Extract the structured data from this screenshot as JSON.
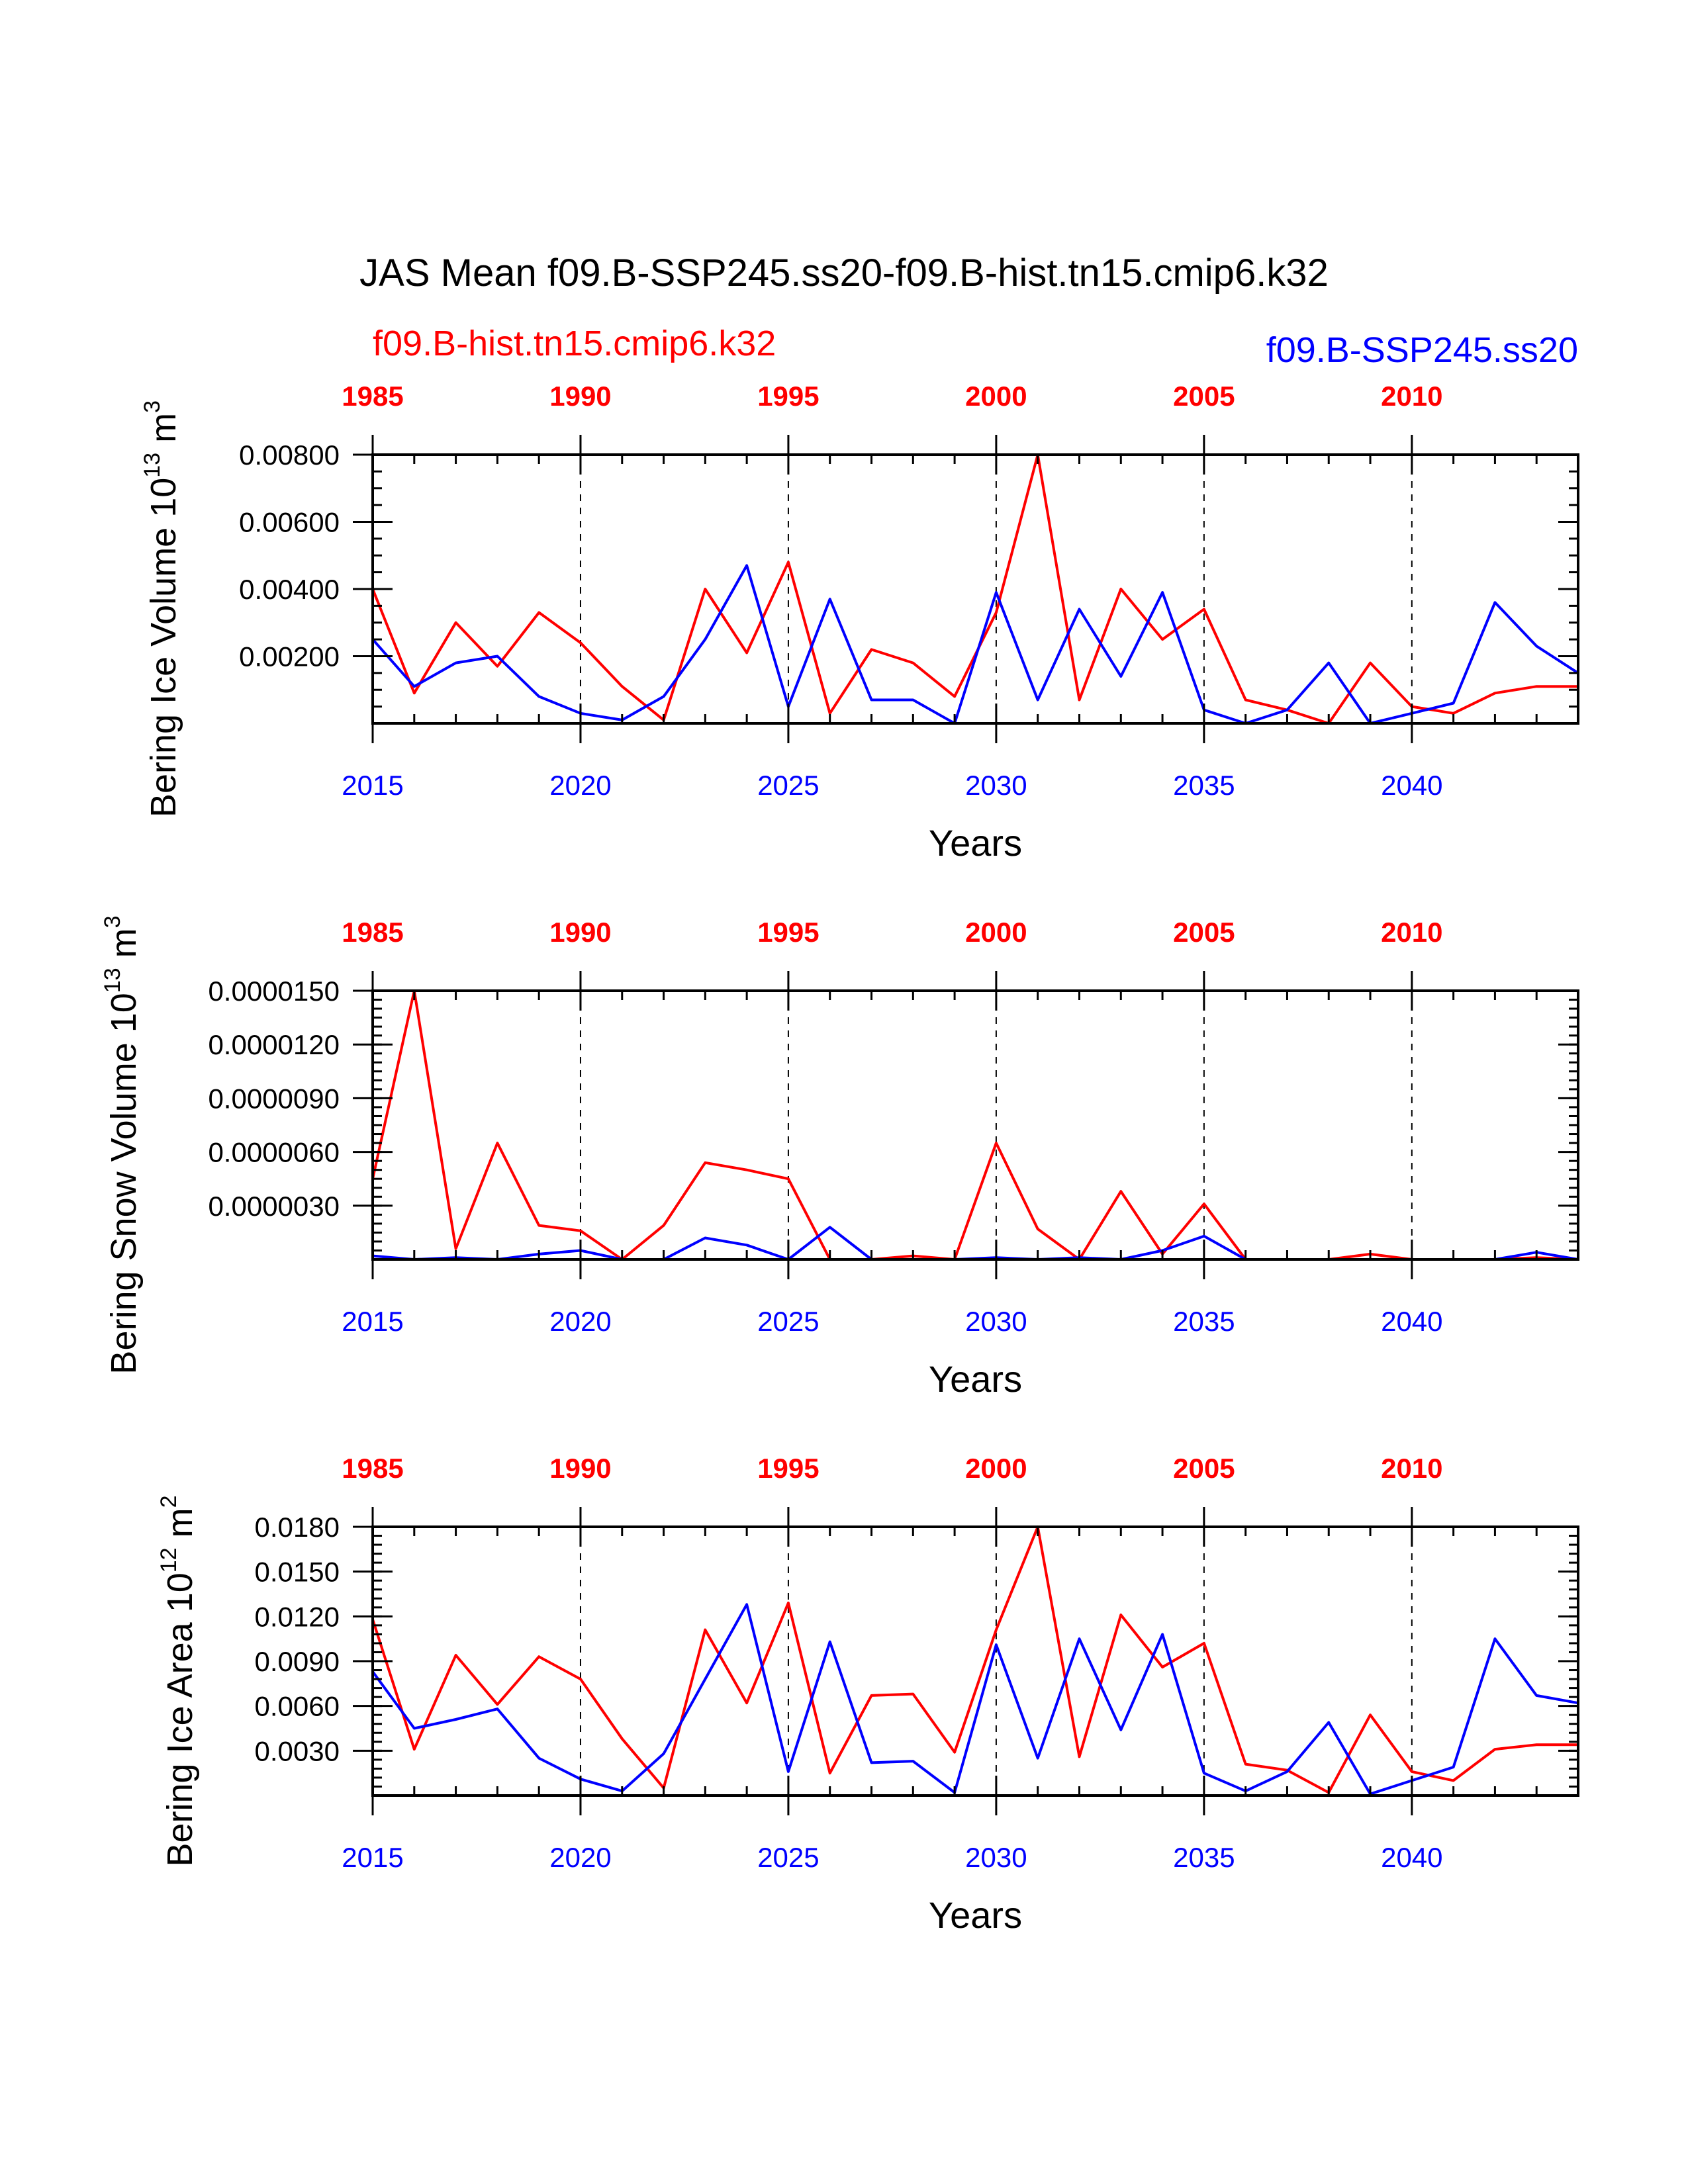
{
  "title": "JAS Mean f09.B-SSP245.ss20-f09.B-hist.tn15.cmip6.k32",
  "colors": {
    "hist": "#ff0000",
    "ssp": "#0000ff",
    "axis": "#000000"
  },
  "legend": {
    "hist_label": "f09.B-hist.tn15.cmip6.k32",
    "ssp_label": "f09.B-SSP245.ss20"
  },
  "chart_data": [
    {
      "type": "line",
      "ylabel": "Bering Ice Volume 10",
      "ylabel_exp": "13",
      "ylabel_unit": " m",
      "ylabel_unit_exp": "3",
      "xlabel": "Years",
      "ylim": [
        0,
        0.008
      ],
      "yticks": [
        0.002,
        0.004,
        0.006,
        0.008
      ],
      "ytick_labels": [
        "0.00200",
        "0.00400",
        "0.00600",
        "0.00800"
      ],
      "yminor": 0.0005,
      "bottom_x": [
        2015,
        2016,
        2017,
        2018,
        2019,
        2020,
        2021,
        2022,
        2023,
        2024,
        2025,
        2026,
        2027,
        2028,
        2029,
        2030,
        2031,
        2032,
        2033,
        2034,
        2035,
        2036,
        2037,
        2038,
        2039,
        2040,
        2041,
        2042,
        2043,
        2044
      ],
      "xlim": [
        2015,
        2044
      ],
      "bottom_ticks": [
        "2015",
        "2020",
        "2025",
        "2030",
        "2035",
        "2040"
      ],
      "top_ticks": [
        "1985",
        "1990",
        "1995",
        "2000",
        "2005",
        "2010"
      ],
      "series": [
        {
          "name": "f09.B-hist.tn15.cmip6.k32",
          "values": [
            0.004,
            0.0009,
            0.003,
            0.0017,
            0.0033,
            0.0024,
            0.0011,
            0.0001,
            0.004,
            0.0021,
            0.0048,
            0.0003,
            0.0022,
            0.0018,
            0.0008,
            0.0033,
            0.008,
            0.0007,
            0.004,
            0.0025,
            0.0034,
            0.0007,
            0.0004,
            0.0,
            0.0018,
            0.0005,
            0.0003,
            0.0009,
            0.0011,
            0.0011
          ]
        },
        {
          "name": "f09.B-SSP245.ss20",
          "values": [
            0.0025,
            0.0011,
            0.0018,
            0.002,
            0.0008,
            0.0003,
            0.0001,
            0.0008,
            0.0025,
            0.0047,
            0.0005,
            0.0037,
            0.0007,
            0.0007,
            0.0,
            0.0039,
            0.0007,
            0.0034,
            0.0014,
            0.0039,
            0.0004,
            0.0,
            0.0004,
            0.0018,
            0.0,
            0.0003,
            0.0006,
            0.0036,
            0.0023,
            0.0015
          ]
        }
      ]
    },
    {
      "type": "line",
      "ylabel": "Bering Snow Volume 10",
      "ylabel_exp": "13",
      "ylabel_unit": " m",
      "ylabel_unit_exp": "3",
      "xlabel": "Years",
      "ylim": [
        0,
        1.5e-05
      ],
      "yticks": [
        3e-06,
        6e-06,
        9e-06,
        1.2e-05,
        1.5e-05
      ],
      "ytick_labels": [
        "0.0000030",
        "0.0000060",
        "0.0000090",
        "0.0000120",
        "0.0000150"
      ],
      "yminor": 5e-07,
      "bottom_x": [
        2015,
        2016,
        2017,
        2018,
        2019,
        2020,
        2021,
        2022,
        2023,
        2024,
        2025,
        2026,
        2027,
        2028,
        2029,
        2030,
        2031,
        2032,
        2033,
        2034,
        2035,
        2036,
        2037,
        2038,
        2039,
        2040,
        2041,
        2042,
        2043,
        2044
      ],
      "xlim": [
        2015,
        2044
      ],
      "bottom_ticks": [
        "2015",
        "2020",
        "2025",
        "2030",
        "2035",
        "2040"
      ],
      "top_ticks": [
        "1985",
        "1990",
        "1995",
        "2000",
        "2005",
        "2010"
      ],
      "series": [
        {
          "name": "f09.B-hist.tn15.cmip6.k32",
          "values": [
            4.5e-06,
            1.5e-05,
            6e-07,
            6.5e-06,
            1.9e-06,
            1.6e-06,
            0.0,
            1.9e-06,
            5.4e-06,
            5e-06,
            4.5e-06,
            0.0,
            0.0,
            2e-07,
            0.0,
            6.5e-06,
            1.7e-06,
            0.0,
            3.8e-06,
            3e-07,
            3.1e-06,
            0.0,
            0.0,
            0.0,
            3e-07,
            0.0,
            0.0,
            0.0,
            1e-07,
            0.0
          ]
        },
        {
          "name": "f09.B-SSP245.ss20",
          "values": [
            2e-07,
            0.0,
            1e-07,
            0.0,
            3e-07,
            5e-07,
            0.0,
            0.0,
            1.2e-06,
            8e-07,
            0.0,
            1.8e-06,
            0.0,
            0.0,
            0.0,
            1e-07,
            0.0,
            1e-07,
            0.0,
            5e-07,
            1.3e-06,
            0.0,
            0.0,
            0.0,
            0.0,
            0.0,
            0.0,
            0.0,
            4e-07,
            0.0
          ]
        }
      ]
    },
    {
      "type": "line",
      "ylabel": "Bering Ice Area 10",
      "ylabel_exp": "12",
      "ylabel_unit": " m",
      "ylabel_unit_exp": "2",
      "xlabel": "Years",
      "ylim": [
        0,
        0.018
      ],
      "yticks": [
        0.003,
        0.006,
        0.009,
        0.012,
        0.015,
        0.018
      ],
      "ytick_labels": [
        "0.0030",
        "0.0060",
        "0.0090",
        "0.0120",
        "0.0150",
        "0.0180"
      ],
      "yminor": 0.0006,
      "bottom_x": [
        2015,
        2016,
        2017,
        2018,
        2019,
        2020,
        2021,
        2022,
        2023,
        2024,
        2025,
        2026,
        2027,
        2028,
        2029,
        2030,
        2031,
        2032,
        2033,
        2034,
        2035,
        2036,
        2037,
        2038,
        2039,
        2040,
        2041,
        2042,
        2043,
        2044
      ],
      "xlim": [
        2015,
        2044
      ],
      "bottom_ticks": [
        "2015",
        "2020",
        "2025",
        "2030",
        "2035",
        "2040"
      ],
      "top_ticks": [
        "1985",
        "1990",
        "1995",
        "2000",
        "2005",
        "2010"
      ],
      "series": [
        {
          "name": "f09.B-hist.tn15.cmip6.k32",
          "values": [
            0.0118,
            0.0031,
            0.0094,
            0.0061,
            0.0093,
            0.0078,
            0.0038,
            0.0005,
            0.0111,
            0.0062,
            0.0129,
            0.0015,
            0.0067,
            0.0068,
            0.0029,
            0.0111,
            0.018,
            0.0026,
            0.0121,
            0.0086,
            0.0102,
            0.0021,
            0.0017,
            0.0002,
            0.0054,
            0.0016,
            0.001,
            0.0031,
            0.0034,
            0.0034
          ]
        },
        {
          "name": "f09.B-SSP245.ss20",
          "values": [
            0.0083,
            0.0045,
            0.0051,
            0.0058,
            0.0025,
            0.0011,
            0.0003,
            0.0028,
            0.0078,
            0.0128,
            0.0016,
            0.0103,
            0.0022,
            0.0023,
            0.0002,
            0.0101,
            0.0025,
            0.0105,
            0.0044,
            0.0108,
            0.0015,
            0.0003,
            0.0016,
            0.0049,
            0.0001,
            0.001,
            0.0019,
            0.0105,
            0.0067,
            0.0062
          ]
        }
      ]
    }
  ]
}
